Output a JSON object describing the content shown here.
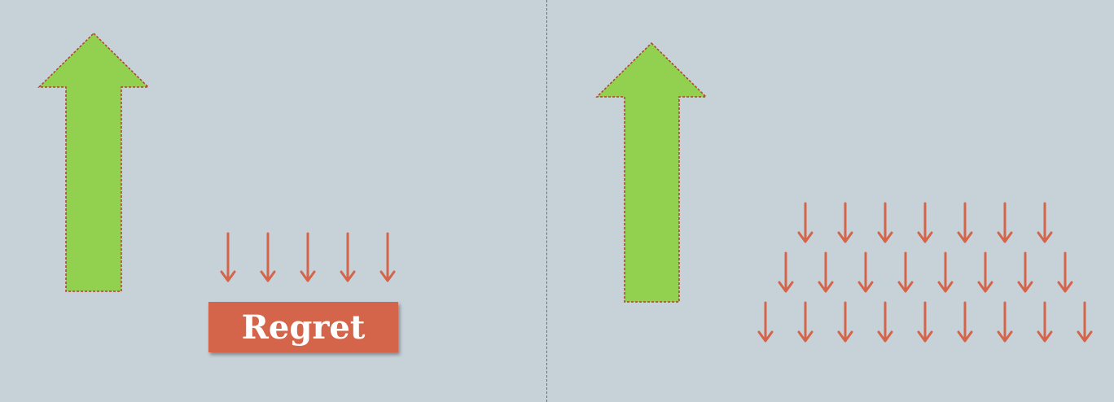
{
  "left_panel": {
    "label": "Regret",
    "label_color": "#d5654a",
    "big_arrow": {
      "icon": "up-arrow-icon",
      "color": "#92d050",
      "outline": "#b0402a"
    },
    "small_arrow_count": 5
  },
  "right_panel": {
    "big_arrow": {
      "icon": "up-arrow-icon",
      "color": "#92d050",
      "outline": "#b0402a"
    },
    "small_arrow_rows": [
      7,
      8,
      9
    ]
  },
  "small_arrow": {
    "icon": "down-arrow-icon",
    "color": "#d5654a"
  },
  "divider": {
    "style": "dashed",
    "color": "#5a6f8a"
  }
}
